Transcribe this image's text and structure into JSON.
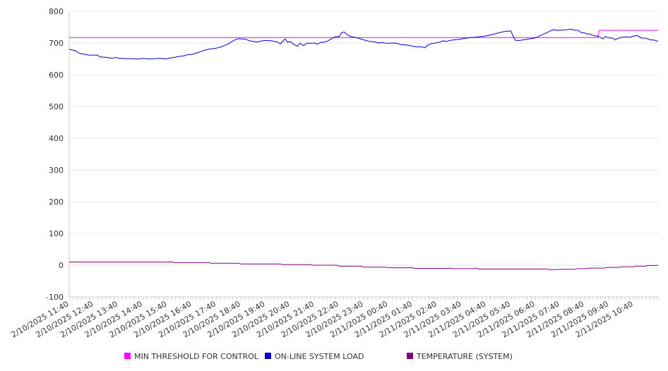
{
  "chart_data": {
    "type": "line",
    "title": "",
    "xlabel": "",
    "ylabel": "",
    "ylim": [
      -100,
      800
    ],
    "yticks": [
      -100,
      0,
      100,
      200,
      300,
      400,
      500,
      600,
      700,
      800
    ],
    "grid": true,
    "legend_position": "bottom",
    "x_tick_labels": [
      "2/10/2025 11:40",
      "2/10/2025 12:40",
      "2/10/2025 13:40",
      "2/10/2025 14:40",
      "2/10/2025 15:40",
      "2/10/2025 16:40",
      "2/10/2025 17:40",
      "2/10/2025 18:40",
      "2/10/2025 19:40",
      "2/10/2025 20:40",
      "2/10/2025 21:40",
      "2/10/2025 22:40",
      "2/10/2025 23:40",
      "2/11/2025 00:40",
      "2/11/2025 01:40",
      "2/11/2025 02:40",
      "2/11/2025 03:40",
      "2/11/2025 04:40",
      "2/11/2025 05:40",
      "2/11/2025 06:40",
      "2/11/2025 07:40",
      "2/11/2025 08:40",
      "2/11/2025 09:40",
      "2/11/2025 10:40"
    ],
    "x_hours": [
      0,
      24
    ],
    "series": [
      {
        "name": "MIN THRESHOLD FOR CONTROL",
        "color": "#ff00ff",
        "points": [
          [
            0,
            717
          ],
          [
            21.55,
            717
          ],
          [
            21.6,
            740
          ],
          [
            24,
            740
          ]
        ]
      },
      {
        "name": "ON-LINE SYSTEM LOAD",
        "color": "#0000cc",
        "points": [
          [
            0,
            680
          ],
          [
            0.25,
            676
          ],
          [
            0.4,
            668
          ],
          [
            0.6,
            665
          ],
          [
            0.8,
            662
          ],
          [
            1,
            662
          ],
          [
            1.15,
            662
          ],
          [
            1.25,
            656
          ],
          [
            1.5,
            655
          ],
          [
            1.75,
            652
          ],
          [
            1.9,
            655
          ],
          [
            2,
            652
          ],
          [
            2.3,
            651
          ],
          [
            2.6,
            651
          ],
          [
            2.8,
            649
          ],
          [
            3,
            652
          ],
          [
            3.2,
            650
          ],
          [
            3.5,
            651
          ],
          [
            3.7,
            652
          ],
          [
            3.9,
            650
          ],
          [
            4,
            651
          ],
          [
            4.3,
            655
          ],
          [
            4.5,
            658
          ],
          [
            4.7,
            660
          ],
          [
            4.85,
            664
          ],
          [
            5,
            664
          ],
          [
            5.25,
            670
          ],
          [
            5.4,
            674
          ],
          [
            5.55,
            678
          ],
          [
            5.7,
            681
          ],
          [
            6,
            684
          ],
          [
            6.2,
            688
          ],
          [
            6.35,
            693
          ],
          [
            6.5,
            698
          ],
          [
            6.6,
            703
          ],
          [
            6.75,
            710
          ],
          [
            6.9,
            714
          ],
          [
            7,
            713
          ],
          [
            7.2,
            712
          ],
          [
            7.35,
            707
          ],
          [
            7.5,
            705
          ],
          [
            7.65,
            703
          ],
          [
            7.8,
            706
          ],
          [
            8,
            708
          ],
          [
            8.25,
            707
          ],
          [
            8.5,
            703
          ],
          [
            8.6,
            697
          ],
          [
            8.8,
            713
          ],
          [
            8.9,
            702
          ],
          [
            9,
            705
          ],
          [
            9.15,
            696
          ],
          [
            9.3,
            690
          ],
          [
            9.4,
            700
          ],
          [
            9.55,
            692
          ],
          [
            9.7,
            700
          ],
          [
            9.85,
            699
          ],
          [
            10,
            700
          ],
          [
            10.1,
            696
          ],
          [
            10.25,
            702
          ],
          [
            10.35,
            702
          ],
          [
            10.5,
            705
          ],
          [
            10.65,
            712
          ],
          [
            10.85,
            720
          ],
          [
            11,
            720
          ],
          [
            11.1,
            732
          ],
          [
            11.2,
            735
          ],
          [
            11.35,
            725
          ],
          [
            11.5,
            720
          ],
          [
            11.75,
            716
          ],
          [
            12,
            710
          ],
          [
            12.25,
            705
          ],
          [
            12.5,
            703
          ],
          [
            12.6,
            700
          ],
          [
            12.75,
            702
          ],
          [
            12.85,
            700
          ],
          [
            13,
            699
          ],
          [
            13.25,
            700
          ],
          [
            13.4,
            698
          ],
          [
            13.5,
            695
          ],
          [
            13.75,
            694
          ],
          [
            14,
            690
          ],
          [
            14.15,
            688
          ],
          [
            14.35,
            688
          ],
          [
            14.5,
            685
          ],
          [
            14.6,
            693
          ],
          [
            14.75,
            698
          ],
          [
            15,
            701
          ],
          [
            15.1,
            703
          ],
          [
            15.25,
            707
          ],
          [
            15.4,
            705
          ],
          [
            15.5,
            708
          ],
          [
            15.7,
            710
          ],
          [
            15.9,
            712
          ],
          [
            16,
            713
          ],
          [
            16.25,
            716
          ],
          [
            16.5,
            718
          ],
          [
            16.75,
            720
          ],
          [
            17,
            723
          ],
          [
            17.25,
            727
          ],
          [
            17.5,
            732
          ],
          [
            17.65,
            735
          ],
          [
            17.85,
            737
          ],
          [
            18,
            738
          ],
          [
            18.1,
            720
          ],
          [
            18.2,
            708
          ],
          [
            18.35,
            708
          ],
          [
            18.5,
            710
          ],
          [
            18.75,
            713
          ],
          [
            19,
            716
          ],
          [
            19.15,
            722
          ],
          [
            19.3,
            727
          ],
          [
            19.45,
            732
          ],
          [
            19.6,
            738
          ],
          [
            19.75,
            742
          ],
          [
            19.9,
            740
          ],
          [
            20.1,
            741
          ],
          [
            20.3,
            742
          ],
          [
            20.45,
            744
          ],
          [
            20.6,
            740
          ],
          [
            20.75,
            740
          ],
          [
            20.85,
            733
          ],
          [
            21,
            732
          ],
          [
            21.1,
            728
          ],
          [
            21.2,
            729
          ],
          [
            21.35,
            724
          ],
          [
            21.5,
            722
          ],
          [
            21.6,
            720
          ],
          [
            21.75,
            713
          ],
          [
            21.85,
            720
          ],
          [
            22,
            716
          ],
          [
            22.15,
            716
          ],
          [
            22.25,
            710
          ],
          [
            22.35,
            714
          ],
          [
            22.5,
            718
          ],
          [
            22.7,
            719
          ],
          [
            22.85,
            718
          ],
          [
            23,
            722
          ],
          [
            23.15,
            724
          ],
          [
            23.3,
            716
          ],
          [
            23.5,
            715
          ],
          [
            23.7,
            710
          ],
          [
            23.85,
            709
          ],
          [
            24,
            705
          ]
        ]
      },
      {
        "name": "TEMPERATURE (SYSTEM)",
        "color": "#800080",
        "points": [
          [
            0,
            10
          ],
          [
            4.2,
            10
          ],
          [
            4.3,
            8
          ],
          [
            5.7,
            8
          ],
          [
            5.8,
            6
          ],
          [
            6.9,
            6
          ],
          [
            7,
            4
          ],
          [
            8.6,
            4
          ],
          [
            8.7,
            2
          ],
          [
            9.8,
            2
          ],
          [
            9.9,
            0
          ],
          [
            10.9,
            0
          ],
          [
            11,
            -3
          ],
          [
            11.9,
            -3
          ],
          [
            12,
            -6
          ],
          [
            12.9,
            -6
          ],
          [
            13,
            -8
          ],
          [
            14,
            -8
          ],
          [
            14.1,
            -10
          ],
          [
            15.4,
            -10
          ],
          [
            15.5,
            -9
          ],
          [
            15.6,
            -11
          ],
          [
            16.5,
            -11
          ],
          [
            16.6,
            -9
          ],
          [
            16.7,
            -12
          ],
          [
            19.5,
            -12
          ],
          [
            19.6,
            -14
          ],
          [
            19.9,
            -14
          ],
          [
            20,
            -13
          ],
          [
            20.6,
            -13
          ],
          [
            20.7,
            -11
          ],
          [
            21.1,
            -11
          ],
          [
            21.2,
            -9
          ],
          [
            21.8,
            -9
          ],
          [
            21.9,
            -7
          ],
          [
            22.4,
            -7
          ],
          [
            22.5,
            -5
          ],
          [
            23,
            -5
          ],
          [
            23.1,
            -3
          ],
          [
            23.5,
            -3
          ],
          [
            23.6,
            -1
          ],
          [
            24,
            -1
          ]
        ]
      }
    ]
  }
}
